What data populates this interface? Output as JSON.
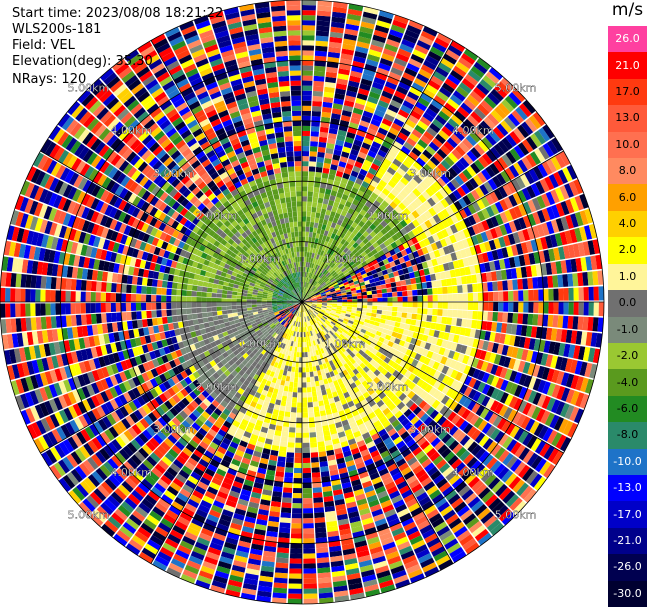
{
  "info": {
    "start_time": "Start time: 2023/08/08 18:21:22",
    "site": "WLS200s-181",
    "field": "Field: VEL",
    "elevation": "Elevation(deg): 35.30",
    "nrays": "NRays: 120"
  },
  "colorbar": {
    "unit": "m/s",
    "levels": [
      {
        "label": "26.0",
        "color": "#ff40a0"
      },
      {
        "label": "21.0",
        "color": "#ff0000"
      },
      {
        "label": "17.0",
        "color": "#ff3a10"
      },
      {
        "label": "13.0",
        "color": "#ff5a3a"
      },
      {
        "label": "10.0",
        "color": "#ff7050"
      },
      {
        "label": "8.0",
        "color": "#ff8a60"
      },
      {
        "label": "6.0",
        "color": "#ffa000"
      },
      {
        "label": "4.0",
        "color": "#ffd000"
      },
      {
        "label": "2.0",
        "color": "#ffff00"
      },
      {
        "label": "1.0",
        "color": "#fff59a"
      },
      {
        "label": "0.0",
        "color": "#707070"
      },
      {
        "label": "-1.0",
        "color": "#7a8a7a"
      },
      {
        "label": "-2.0",
        "color": "#9ac832"
      },
      {
        "label": "-4.0",
        "color": "#5a9a1e"
      },
      {
        "label": "-6.0",
        "color": "#228b22"
      },
      {
        "label": "-8.0",
        "color": "#2a8a6a"
      },
      {
        "label": "-10.0",
        "color": "#1e73c8"
      },
      {
        "label": "-13.0",
        "color": "#0000ff"
      },
      {
        "label": "-17.0",
        "color": "#0000c8"
      },
      {
        "label": "-21.0",
        "color": "#00008b"
      },
      {
        "label": "-26.0",
        "color": "#000050"
      },
      {
        "label": "-30.0",
        "color": "#000030"
      }
    ]
  },
  "chart_data": {
    "type": "heatmap",
    "projection": "polar (PPI)",
    "field": "VEL",
    "units": "m/s",
    "nrays": 120,
    "elevation_deg": 35.3,
    "range_rings_km": [
      1.0,
      2.0,
      3.0,
      4.0,
      5.0
    ],
    "ring_labels": [
      "1.00km",
      "2.00km",
      "3.00km",
      "4.00km",
      "5.00km"
    ],
    "max_range_km": 5.0,
    "zones": [
      {
        "range_km": [
          0.0,
          0.5
        ],
        "azimuth_deg": [
          250,
          360
        ],
        "dominant_value": -6.0
      },
      {
        "range_km": [
          0.0,
          2.2
        ],
        "azimuth_deg": [
          270,
          60
        ],
        "dominant_value": -2.0
      },
      {
        "range_km": [
          0.0,
          2.5
        ],
        "azimuth_deg": [
          90,
          210
        ],
        "dominant_value": 2.0
      },
      {
        "range_km": [
          0.2,
          1.2
        ],
        "azimuth_deg": [
          100,
          160
        ],
        "dominant_value": 6.0
      },
      {
        "range_km": [
          0.5,
          2.2
        ],
        "azimuth_deg": [
          210,
          270
        ],
        "dominant_value": 0.0
      },
      {
        "range_km": [
          2.2,
          3.0
        ],
        "azimuth_deg": [
          30,
          130
        ],
        "dominant_value": 2.0
      },
      {
        "range_km": [
          3.0,
          5.0
        ],
        "azimuth_deg": [
          0,
          360
        ],
        "dominant_value": "mixed (noise)"
      }
    ]
  }
}
